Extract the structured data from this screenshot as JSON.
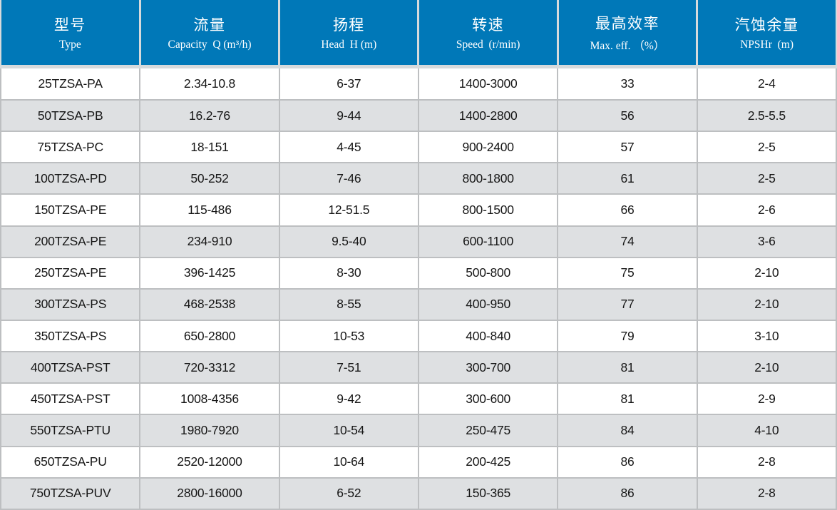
{
  "colors": {
    "header-bg": "#0078b8",
    "header-text": "#ffffff",
    "row-bg": "#ffffff",
    "row-alt-bg": "#dee0e2",
    "grid": "#bdbfc1",
    "header-divider": "#d6dadc",
    "body-text": "#161616"
  },
  "chart_data": {
    "type": "table",
    "columns": [
      {
        "key": "type",
        "zh": "型号",
        "en": "Type"
      },
      {
        "key": "capacity",
        "zh": "流量",
        "en": "Capacity  Q (m³/h)"
      },
      {
        "key": "head",
        "zh": "扬程",
        "en": "Head  H (m)"
      },
      {
        "key": "speed",
        "zh": "转速",
        "en": "Speed  (r/min)"
      },
      {
        "key": "max-eff",
        "zh": "最高效率",
        "en": "Max. eff. （%）"
      },
      {
        "key": "npshr",
        "zh": "汽蚀余量",
        "en": "NPSHr  (m)"
      }
    ],
    "rows": [
      [
        "25TZSA-PA",
        "2.34-10.8",
        "6-37",
        "1400-3000",
        "33",
        "2-4"
      ],
      [
        "50TZSA-PB",
        "16.2-76",
        "9-44",
        "1400-2800",
        "56",
        "2.5-5.5"
      ],
      [
        "75TZSA-PC",
        "18-151",
        "4-45",
        "900-2400",
        "57",
        "2-5"
      ],
      [
        "100TZSA-PD",
        "50-252",
        "7-46",
        "800-1800",
        "61",
        "2-5"
      ],
      [
        "150TZSA-PE",
        "115-486",
        "12-51.5",
        "800-1500",
        "66",
        "2-6"
      ],
      [
        "200TZSA-PE",
        "234-910",
        "9.5-40",
        "600-1100",
        "74",
        "3-6"
      ],
      [
        "250TZSA-PE",
        "396-1425",
        "8-30",
        "500-800",
        "75",
        "2-10"
      ],
      [
        "300TZSA-PS",
        "468-2538",
        "8-55",
        "400-950",
        "77",
        "2-10"
      ],
      [
        "350TZSA-PS",
        "650-2800",
        "10-53",
        "400-840",
        "79",
        "3-10"
      ],
      [
        "400TZSA-PST",
        "720-3312",
        "7-51",
        "300-700",
        "81",
        "2-10"
      ],
      [
        "450TZSA-PST",
        "1008-4356",
        "9-42",
        "300-600",
        "81",
        "2-9"
      ],
      [
        "550TZSA-PTU",
        "1980-7920",
        "10-54",
        "250-475",
        "84",
        "4-10"
      ],
      [
        "650TZSA-PU",
        "2520-12000",
        "10-64",
        "200-425",
        "86",
        "2-8"
      ],
      [
        "750TZSA-PUV",
        "2800-16000",
        "6-52",
        "150-365",
        "86",
        "2-8"
      ]
    ]
  }
}
